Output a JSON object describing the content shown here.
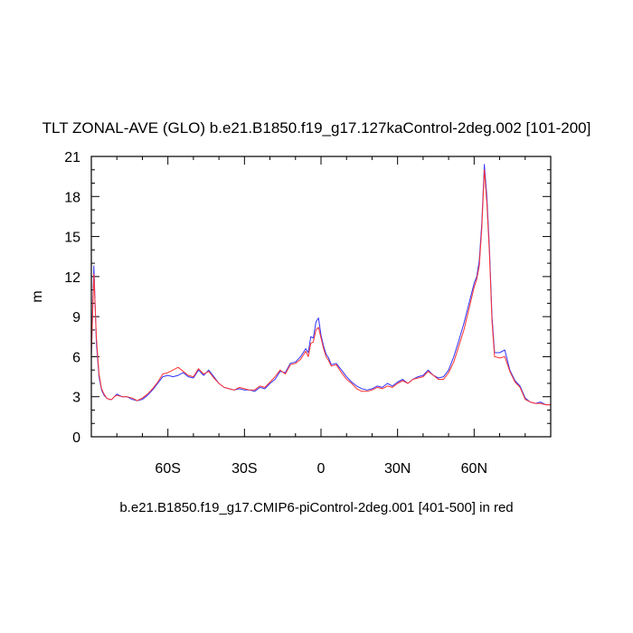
{
  "chart_data": {
    "type": "line",
    "title": "TLT ZONAL-AVE (GLO) b.e21.B1850.f19_g17.127kaControl-2deg.002 [101-200]",
    "xlabel": "b.e21.B1850.f19_g17.CMIP6-piControl-2deg.001 [401-500] in red",
    "ylabel": "m",
    "xlim": [
      -90,
      90
    ],
    "ylim": [
      0,
      21
    ],
    "yticks": [
      0,
      3,
      6,
      9,
      12,
      15,
      18,
      21
    ],
    "xticks": [
      {
        "value": -60,
        "label": "60S"
      },
      {
        "value": -30,
        "label": "30S"
      },
      {
        "value": 0,
        "label": "0"
      },
      {
        "value": 30,
        "label": "30N"
      },
      {
        "value": 60,
        "label": "60N"
      }
    ],
    "grid": false,
    "series": [
      {
        "color": "#3333ff",
        "x": [
          -90,
          -89,
          -88,
          -87,
          -86,
          -85,
          -84,
          -83,
          -82,
          -81,
          -80,
          -78,
          -76,
          -74,
          -72,
          -70,
          -68,
          -66,
          -64,
          -62,
          -60,
          -58,
          -56,
          -54,
          -52,
          -50,
          -48,
          -46,
          -44,
          -42,
          -40,
          -38,
          -36,
          -34,
          -32,
          -30,
          -28,
          -26,
          -24,
          -22,
          -20,
          -18,
          -16,
          -14,
          -12,
          -10,
          -8,
          -6,
          -5,
          -4,
          -3,
          -2,
          -1,
          0,
          1,
          2,
          3,
          4,
          6,
          8,
          10,
          12,
          14,
          16,
          18,
          20,
          22,
          24,
          26,
          28,
          30,
          32,
          34,
          36,
          38,
          40,
          42,
          44,
          46,
          48,
          50,
          52,
          54,
          56,
          58,
          60,
          61,
          62,
          63,
          64,
          65,
          66,
          67,
          68,
          70,
          72,
          74,
          76,
          78,
          80,
          82,
          84,
          86,
          88,
          90
        ],
        "y": [
          6.0,
          12.8,
          7.0,
          4.5,
          3.5,
          3.1,
          2.9,
          2.8,
          2.8,
          3.0,
          3.2,
          3.0,
          3.0,
          2.8,
          2.7,
          2.8,
          3.1,
          3.5,
          4.0,
          4.5,
          4.6,
          4.5,
          4.6,
          4.8,
          4.5,
          4.4,
          5.0,
          4.6,
          5.0,
          4.5,
          4.0,
          3.7,
          3.6,
          3.5,
          3.6,
          3.5,
          3.5,
          3.4,
          3.7,
          3.6,
          4.0,
          4.3,
          4.9,
          4.8,
          5.5,
          5.6,
          6.0,
          6.6,
          6.3,
          7.5,
          7.4,
          8.6,
          8.9,
          7.6,
          6.8,
          6.2,
          5.9,
          5.4,
          5.5,
          5.0,
          4.5,
          4.1,
          3.8,
          3.6,
          3.5,
          3.6,
          3.8,
          3.7,
          4.0,
          3.8,
          4.1,
          4.3,
          4.0,
          4.3,
          4.5,
          4.6,
          5.0,
          4.6,
          4.4,
          4.5,
          5.0,
          6.0,
          7.2,
          8.5,
          10.0,
          11.5,
          12.0,
          13.2,
          16.0,
          20.4,
          18.0,
          14.0,
          9.0,
          6.3,
          6.3,
          6.5,
          5.0,
          4.2,
          3.8,
          2.9,
          2.6,
          2.5,
          2.6,
          2.4,
          2.4
        ]
      },
      {
        "color": "#ff3333",
        "x": [
          -90,
          -89,
          -88,
          -87,
          -86,
          -85,
          -84,
          -83,
          -82,
          -81,
          -80,
          -78,
          -76,
          -74,
          -72,
          -70,
          -68,
          -66,
          -64,
          -62,
          -60,
          -58,
          -56,
          -54,
          -52,
          -50,
          -48,
          -46,
          -44,
          -42,
          -40,
          -38,
          -36,
          -34,
          -32,
          -30,
          -28,
          -26,
          -24,
          -22,
          -20,
          -18,
          -16,
          -14,
          -12,
          -10,
          -8,
          -6,
          -5,
          -4,
          -3,
          -2,
          -1,
          0,
          1,
          2,
          3,
          4,
          6,
          8,
          10,
          12,
          14,
          16,
          18,
          20,
          22,
          24,
          26,
          28,
          30,
          32,
          34,
          36,
          38,
          40,
          42,
          44,
          46,
          48,
          50,
          52,
          54,
          56,
          58,
          60,
          61,
          62,
          63,
          64,
          65,
          66,
          67,
          68,
          70,
          72,
          74,
          76,
          78,
          80,
          82,
          84,
          86,
          88,
          90
        ],
        "y": [
          6.2,
          12.2,
          7.4,
          4.7,
          3.6,
          3.2,
          2.9,
          2.8,
          2.8,
          3.0,
          3.1,
          3.0,
          3.0,
          2.9,
          2.7,
          2.9,
          3.2,
          3.6,
          4.1,
          4.7,
          4.8,
          5.0,
          5.2,
          4.9,
          4.6,
          4.5,
          5.1,
          4.7,
          4.9,
          4.4,
          4.0,
          3.7,
          3.6,
          3.5,
          3.7,
          3.6,
          3.5,
          3.5,
          3.8,
          3.7,
          4.1,
          4.5,
          5.0,
          4.7,
          5.4,
          5.5,
          5.8,
          6.4,
          6.0,
          7.0,
          7.1,
          8.0,
          8.2,
          7.4,
          6.6,
          6.0,
          5.7,
          5.3,
          5.4,
          4.8,
          4.3,
          4.0,
          3.6,
          3.4,
          3.4,
          3.5,
          3.7,
          3.6,
          3.8,
          3.7,
          4.0,
          4.2,
          4.0,
          4.3,
          4.4,
          4.5,
          4.9,
          4.6,
          4.3,
          4.3,
          4.8,
          5.6,
          6.8,
          8.0,
          9.6,
          11.2,
          11.8,
          12.8,
          15.6,
          20.0,
          17.5,
          13.6,
          8.6,
          6.0,
          5.9,
          6.0,
          4.9,
          4.1,
          3.7,
          2.8,
          2.6,
          2.5,
          2.5,
          2.4,
          2.4
        ]
      }
    ]
  }
}
